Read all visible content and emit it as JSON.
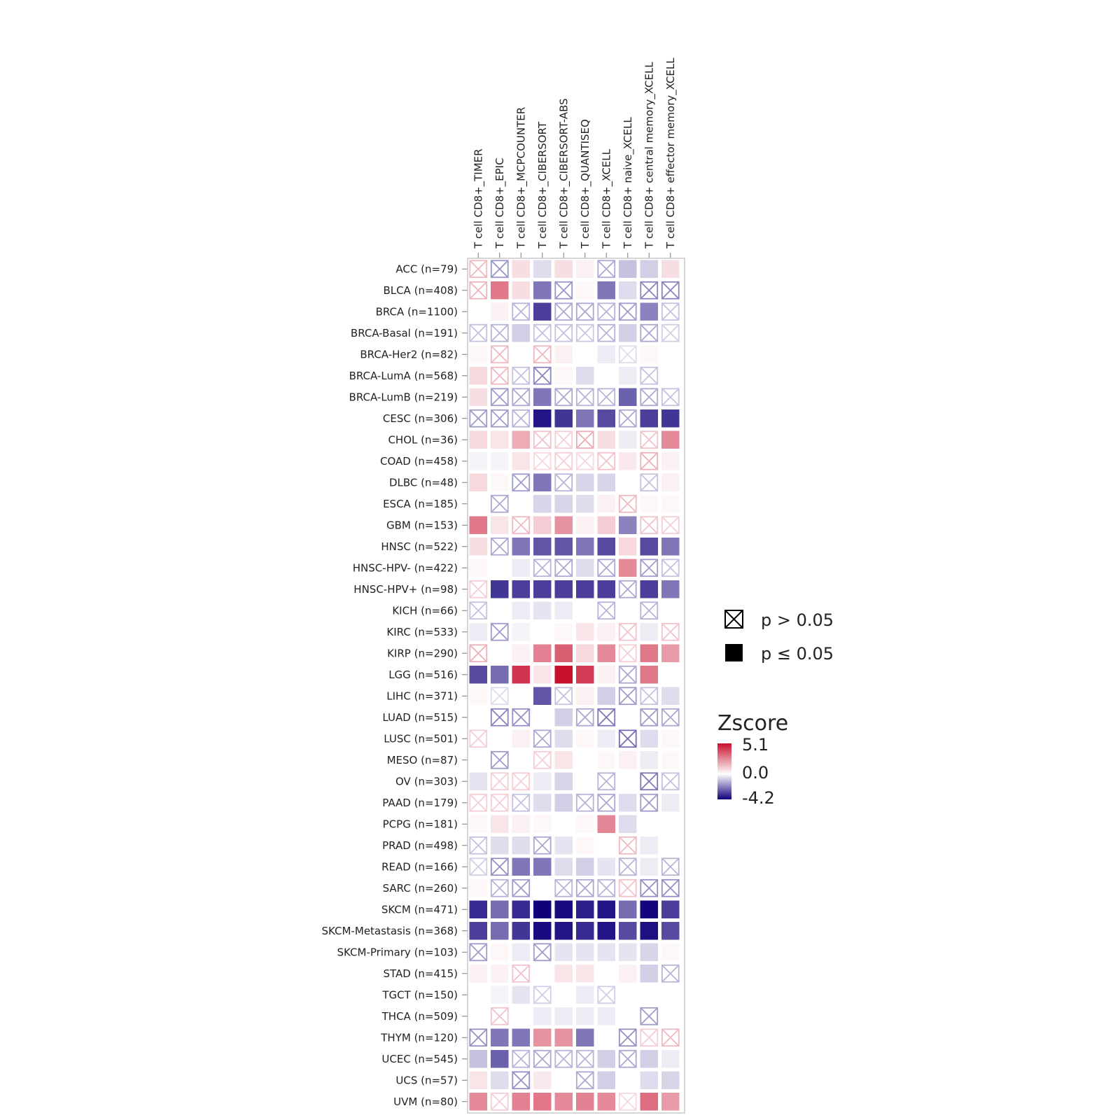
{
  "chart_data": {
    "type": "heatmap",
    "columns": [
      "T cell CD8+_TIMER",
      "T cell CD8+_EPIC",
      "T cell CD8+_MCPCOUNTER",
      "T cell CD8+_CIBERSORT",
      "T cell CD8+_CIBERSORT-ABS",
      "T cell CD8+_QUANTISEQ",
      "T cell CD8+_XCELL",
      "T cell CD8+ naive_XCELL",
      "T cell CD8+ central memory_XCELL",
      "T cell CD8+ effector memory_XCELL"
    ],
    "rows": [
      "ACC (n=79)",
      "BLCA (n=408)",
      "BRCA (n=1100)",
      "BRCA-Basal (n=191)",
      "BRCA-Her2 (n=82)",
      "BRCA-LumA (n=568)",
      "BRCA-LumB (n=219)",
      "CESC (n=306)",
      "CHOL (n=36)",
      "COAD (n=458)",
      "DLBC (n=48)",
      "ESCA (n=185)",
      "GBM (n=153)",
      "HNSC (n=522)",
      "HNSC-HPV- (n=422)",
      "HNSC-HPV+ (n=98)",
      "KICH (n=66)",
      "KIRC (n=533)",
      "KIRP (n=290)",
      "LGG (n=516)",
      "LIHC (n=371)",
      "LUAD (n=515)",
      "LUSC (n=501)",
      "MESO (n=87)",
      "OV (n=303)",
      "PAAD (n=179)",
      "PCPG (n=181)",
      "PRAD (n=498)",
      "READ (n=166)",
      "SARC (n=260)",
      "SKCM (n=471)",
      "SKCM-Metastasis (n=368)",
      "SKCM-Primary (n=103)",
      "STAD (n=415)",
      "TGCT (n=150)",
      "THCA (n=509)",
      "THYM (n=120)",
      "UCEC (n=545)",
      "UCS (n=57)",
      "UVM (n=80)"
    ],
    "zscores": [
      [
        1.2,
        -1.5,
        0.5,
        -0.4,
        0.5,
        0.2,
        -1.2,
        -0.8,
        -0.6,
        0.5
      ],
      [
        1.3,
        2.6,
        0.5,
        -2.0,
        -1.5,
        0.1,
        -2.0,
        -0.4,
        -1.8,
        -1.8
      ],
      [
        0.0,
        0.2,
        -1.0,
        -3.0,
        -1.2,
        -1.2,
        -1.0,
        -1.4,
        -1.8,
        -0.8
      ],
      [
        -0.8,
        -1.0,
        -0.6,
        -0.8,
        -0.8,
        -0.7,
        -1.0,
        -0.6,
        -1.2,
        -0.6
      ],
      [
        0.1,
        1.2,
        0.0,
        1.2,
        0.2,
        0.0,
        -0.2,
        -0.4,
        0.1,
        0.0
      ],
      [
        0.6,
        1.2,
        -0.8,
        -1.8,
        0.1,
        -0.4,
        0.0,
        -0.2,
        -0.8,
        0.0
      ],
      [
        0.5,
        -1.4,
        -1.2,
        -2.0,
        -1.2,
        -1.0,
        -1.0,
        -2.4,
        -1.2,
        -0.8
      ],
      [
        -1.4,
        -1.4,
        -1.0,
        -3.8,
        -3.2,
        -2.0,
        -2.8,
        -1.2,
        -3.0,
        -3.2
      ],
      [
        0.6,
        0.4,
        1.5,
        1.0,
        0.8,
        1.5,
        0.5,
        -0.2,
        1.0,
        2.2
      ],
      [
        -0.1,
        -0.1,
        0.4,
        0.6,
        0.8,
        0.6,
        1.0,
        0.3,
        1.4,
        0.2
      ],
      [
        0.6,
        0.1,
        -1.4,
        -2.0,
        -1.0,
        -0.5,
        -0.5,
        0.0,
        -0.8,
        0.2
      ],
      [
        0.0,
        -1.2,
        0.0,
        -0.5,
        -0.5,
        -0.4,
        0.2,
        1.2,
        0.1,
        0.1
      ],
      [
        2.6,
        0.4,
        1.2,
        0.8,
        2.0,
        0.2,
        0.8,
        -1.8,
        1.0,
        0.8
      ],
      [
        0.5,
        -1.2,
        -2.0,
        -2.6,
        -2.6,
        -2.0,
        -2.8,
        0.6,
        -2.8,
        -2.0
      ],
      [
        0.1,
        0.0,
        -0.2,
        -1.0,
        -1.2,
        -0.4,
        -1.2,
        2.2,
        -1.4,
        -0.8
      ],
      [
        0.8,
        -3.2,
        -3.0,
        -3.0,
        -3.0,
        -3.0,
        -3.0,
        -1.2,
        -3.0,
        -2.0
      ],
      [
        -0.8,
        0.0,
        -0.2,
        -0.3,
        -0.2,
        0.0,
        -1.0,
        0.0,
        -1.0,
        0.0
      ],
      [
        -0.2,
        -1.4,
        -0.1,
        0.0,
        0.1,
        0.4,
        0.2,
        1.0,
        -0.2,
        1.0
      ],
      [
        1.4,
        0.0,
        0.2,
        2.4,
        3.2,
        0.6,
        2.2,
        0.8,
        2.6,
        1.8
      ],
      [
        -2.8,
        -2.2,
        4.2,
        0.4,
        5.1,
        4.0,
        0.2,
        -1.2,
        2.6,
        0.0
      ],
      [
        0.1,
        -0.4,
        0.0,
        -2.6,
        -0.8,
        0.2,
        -0.6,
        -1.4,
        -0.8,
        -0.4
      ],
      [
        0.0,
        -1.8,
        -1.6,
        0.0,
        -0.6,
        -1.2,
        -2.0,
        0.0,
        -1.4,
        -1.2
      ],
      [
        0.8,
        0.0,
        0.2,
        -1.2,
        -0.4,
        0.1,
        -0.2,
        -2.2,
        -0.4,
        0.1
      ],
      [
        0.0,
        -1.4,
        0.0,
        0.8,
        0.4,
        0.0,
        0.1,
        0.2,
        -0.2,
        0.1
      ],
      [
        -0.3,
        0.8,
        0.8,
        -0.2,
        -0.5,
        0.0,
        -1.0,
        0.0,
        -2.0,
        -0.8
      ],
      [
        0.8,
        0.8,
        -0.8,
        -0.4,
        -0.6,
        -1.0,
        -1.2,
        -0.4,
        -1.4,
        -0.2
      ],
      [
        0.1,
        0.4,
        0.2,
        0.1,
        0.0,
        0.1,
        2.3,
        -0.4,
        0.0,
        0.0
      ],
      [
        -0.8,
        -0.4,
        -0.4,
        -1.2,
        -0.3,
        0.1,
        0.0,
        1.2,
        -0.2,
        0.0
      ],
      [
        -0.6,
        -1.6,
        -2.0,
        -2.0,
        -0.4,
        -0.6,
        -0.3,
        -1.0,
        -0.2,
        -1.0
      ],
      [
        0.1,
        -1.0,
        -1.4,
        0.0,
        -1.0,
        -1.2,
        -1.0,
        1.0,
        -1.6,
        -1.6
      ],
      [
        -3.4,
        -2.2,
        -3.4,
        -4.2,
        -4.0,
        -3.6,
        -3.8,
        -2.2,
        -4.1,
        -3.0
      ],
      [
        -3.0,
        -2.2,
        -3.2,
        -4.0,
        -3.8,
        -3.4,
        -3.8,
        -2.8,
        -3.9,
        -2.8
      ],
      [
        -1.4,
        0.1,
        -0.2,
        -1.4,
        -0.3,
        -0.3,
        -0.3,
        -0.3,
        -0.5,
        0.1
      ],
      [
        0.2,
        0.2,
        1.0,
        0.0,
        0.4,
        0.4,
        0.0,
        0.2,
        -0.6,
        -1.0
      ],
      [
        0.0,
        -0.1,
        -0.3,
        -0.6,
        0.0,
        -0.2,
        -0.6,
        0.0,
        0.0,
        0.0
      ],
      [
        0.0,
        1.0,
        0.0,
        -0.2,
        -0.2,
        -0.2,
        -0.2,
        0.0,
        -1.4,
        0.0
      ],
      [
        -1.6,
        -2.0,
        -2.0,
        2.0,
        2.0,
        -2.0,
        0.0,
        -1.6,
        0.8,
        1.2
      ],
      [
        -0.8,
        -2.4,
        -1.0,
        -1.2,
        -1.0,
        -1.0,
        -0.6,
        -1.2,
        -0.6,
        -0.2
      ],
      [
        0.4,
        -0.4,
        -1.6,
        0.3,
        0.0,
        -1.2,
        -0.6,
        0.0,
        -0.4,
        -0.5
      ],
      [
        2.2,
        0.8,
        2.4,
        2.6,
        2.2,
        2.4,
        2.2,
        0.6,
        2.8,
        1.8
      ]
    ],
    "nonsignificant": [
      [
        1,
        1,
        0,
        0,
        0,
        0,
        1,
        0,
        0,
        0
      ],
      [
        1,
        0,
        0,
        0,
        1,
        0,
        0,
        0,
        1,
        1
      ],
      [
        0,
        0,
        1,
        0,
        1,
        1,
        1,
        1,
        0,
        1
      ],
      [
        1,
        1,
        0,
        1,
        1,
        1,
        1,
        0,
        1,
        1
      ],
      [
        0,
        1,
        0,
        1,
        0,
        0,
        0,
        1,
        0,
        0
      ],
      [
        0,
        1,
        1,
        1,
        0,
        0,
        0,
        0,
        1,
        0
      ],
      [
        0,
        1,
        1,
        0,
        1,
        1,
        1,
        0,
        1,
        1
      ],
      [
        1,
        1,
        1,
        0,
        0,
        0,
        0,
        1,
        0,
        0
      ],
      [
        0,
        0,
        0,
        1,
        1,
        1,
        0,
        0,
        1,
        0
      ],
      [
        0,
        0,
        0,
        1,
        1,
        1,
        1,
        0,
        1,
        0
      ],
      [
        0,
        0,
        1,
        0,
        1,
        0,
        0,
        0,
        1,
        0
      ],
      [
        0,
        1,
        0,
        0,
        0,
        0,
        0,
        1,
        0,
        0
      ],
      [
        0,
        0,
        1,
        0,
        0,
        0,
        0,
        0,
        1,
        1
      ],
      [
        0,
        1,
        0,
        0,
        0,
        0,
        0,
        0,
        0,
        0
      ],
      [
        0,
        0,
        0,
        1,
        1,
        0,
        1,
        0,
        1,
        1
      ],
      [
        1,
        0,
        0,
        0,
        0,
        0,
        0,
        1,
        0,
        0
      ],
      [
        1,
        0,
        0,
        0,
        0,
        0,
        1,
        0,
        1,
        0
      ],
      [
        0,
        1,
        0,
        0,
        0,
        0,
        0,
        1,
        0,
        1
      ],
      [
        1,
        0,
        0,
        0,
        0,
        0,
        0,
        1,
        0,
        0
      ],
      [
        0,
        0,
        0,
        0,
        0,
        0,
        0,
        1,
        0,
        0
      ],
      [
        0,
        1,
        0,
        0,
        1,
        0,
        0,
        1,
        1,
        0
      ],
      [
        0,
        1,
        1,
        0,
        0,
        1,
        1,
        0,
        1,
        1
      ],
      [
        1,
        0,
        0,
        1,
        0,
        0,
        0,
        1,
        0,
        0
      ],
      [
        0,
        1,
        0,
        1,
        0,
        0,
        0,
        0,
        0,
        0
      ],
      [
        0,
        1,
        1,
        0,
        0,
        0,
        1,
        0,
        1,
        1
      ],
      [
        1,
        1,
        1,
        0,
        0,
        1,
        1,
        0,
        1,
        0
      ],
      [
        0,
        0,
        0,
        0,
        0,
        0,
        0,
        0,
        0,
        0
      ],
      [
        1,
        0,
        0,
        1,
        0,
        0,
        0,
        1,
        0,
        0
      ],
      [
        1,
        1,
        0,
        0,
        0,
        0,
        0,
        1,
        0,
        1
      ],
      [
        0,
        1,
        1,
        0,
        1,
        1,
        1,
        1,
        1,
        1
      ],
      [
        0,
        0,
        0,
        0,
        0,
        0,
        0,
        0,
        0,
        0
      ],
      [
        0,
        0,
        0,
        0,
        0,
        0,
        0,
        0,
        0,
        0
      ],
      [
        1,
        0,
        0,
        1,
        0,
        0,
        0,
        0,
        0,
        0
      ],
      [
        0,
        0,
        1,
        0,
        0,
        0,
        0,
        0,
        0,
        1
      ],
      [
        0,
        0,
        0,
        1,
        0,
        0,
        1,
        0,
        0,
        0
      ],
      [
        0,
        1,
        0,
        0,
        0,
        0,
        0,
        0,
        1,
        0
      ],
      [
        1,
        0,
        0,
        0,
        0,
        0,
        0,
        1,
        1,
        1
      ],
      [
        0,
        0,
        1,
        1,
        1,
        1,
        0,
        1,
        0,
        0
      ],
      [
        0,
        0,
        1,
        0,
        0,
        1,
        0,
        0,
        0,
        0
      ],
      [
        0,
        1,
        0,
        0,
        0,
        0,
        0,
        1,
        0,
        0
      ]
    ],
    "legend": {
      "ns_label": "p > 0.05",
      "sig_label": "p ≤ 0.05",
      "title": "Zscore",
      "max_label": "5.1",
      "mid_label": "0.0",
      "min_label": "-4.2",
      "max": 5.1,
      "min": -4.2
    },
    "colors": {
      "high": "#c8102e",
      "mid": "#ffffff",
      "low": "#10007a",
      "border": "#c8c8c8"
    }
  }
}
